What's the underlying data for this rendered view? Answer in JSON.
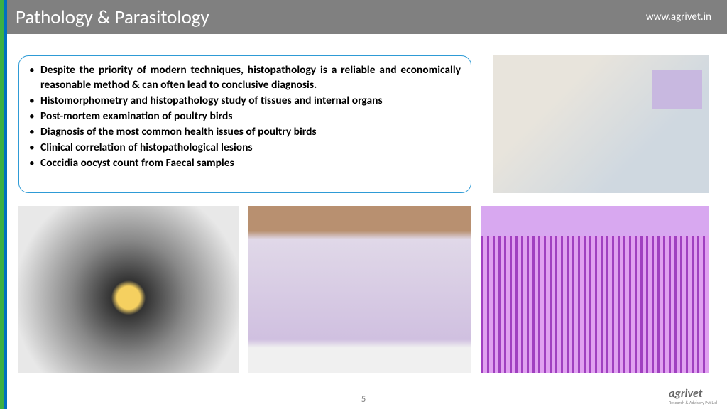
{
  "header": {
    "title": "Pathology & Parasitology",
    "url": "www.agrivet.in"
  },
  "bullets": [
    "Despite the priority of modern techniques, histopathology is a reliable and economically reasonable method & can often lead to conclusive diagnosis.",
    "Histomorphometry and histopathology study of tissues and internal organs",
    "Post-mortem examination of poultry birds",
    "Diagnosis of the most common health issues of poultry birds",
    "Clinical correlation of histopathological lesions",
    "Coccidia oocyst count from Faecal samples"
  ],
  "page_number": "5",
  "logo": {
    "text": "agrivet",
    "sub": "Research & Advisory Pvt Ltd"
  },
  "images": {
    "top_right_alt": "lab-technician-microscope",
    "bottom_left_alt": "microscope-closeup",
    "bottom_middle_alt": "slide-tray",
    "bottom_right_alt": "histology-tissue"
  },
  "colors": {
    "header_bg": "#808080",
    "accent_green": "#3cb043",
    "accent_blue": "#0070c0",
    "box_border": "#2e9bd6",
    "text": "#000000",
    "title_text": "#ffffff"
  }
}
